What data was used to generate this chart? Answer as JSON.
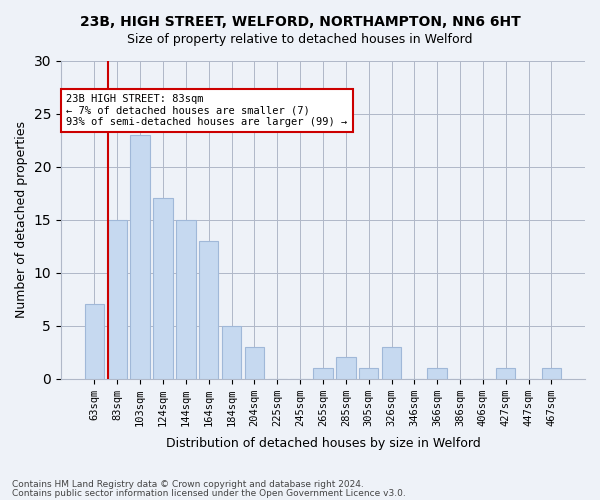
{
  "title1": "23B, HIGH STREET, WELFORD, NORTHAMPTON, NN6 6HT",
  "title2": "Size of property relative to detached houses in Welford",
  "xlabel": "Distribution of detached houses by size in Welford",
  "ylabel": "Number of detached properties",
  "categories": [
    "63sqm",
    "83sqm",
    "103sqm",
    "124sqm",
    "144sqm",
    "164sqm",
    "184sqm",
    "204sqm",
    "225sqm",
    "245sqm",
    "265sqm",
    "285sqm",
    "305sqm",
    "326sqm",
    "346sqm",
    "366sqm",
    "386sqm",
    "406sqm",
    "427sqm",
    "447sqm",
    "467sqm"
  ],
  "values": [
    7,
    15,
    23,
    17,
    15,
    13,
    5,
    3,
    0,
    0,
    1,
    2,
    1,
    3,
    0,
    1,
    0,
    0,
    1,
    0,
    1
  ],
  "bar_color": "#c6d9f0",
  "bar_edge_color": "#a0b8d8",
  "highlight_x": "83sqm",
  "highlight_color": "#cc0000",
  "annotation_title": "23B HIGH STREET: 83sqm",
  "annotation_line1": "← 7% of detached houses are smaller (7)",
  "annotation_line2": "93% of semi-detached houses are larger (99) →",
  "annotation_box_color": "#ffffff",
  "annotation_box_edge": "#cc0000",
  "ylim": [
    0,
    30
  ],
  "yticks": [
    0,
    5,
    10,
    15,
    20,
    25,
    30
  ],
  "footer1": "Contains HM Land Registry data © Crown copyright and database right 2024.",
  "footer2": "Contains public sector information licensed under the Open Government Licence v3.0.",
  "bg_color": "#eef2f8",
  "plot_bg_color": "#eef2f8"
}
